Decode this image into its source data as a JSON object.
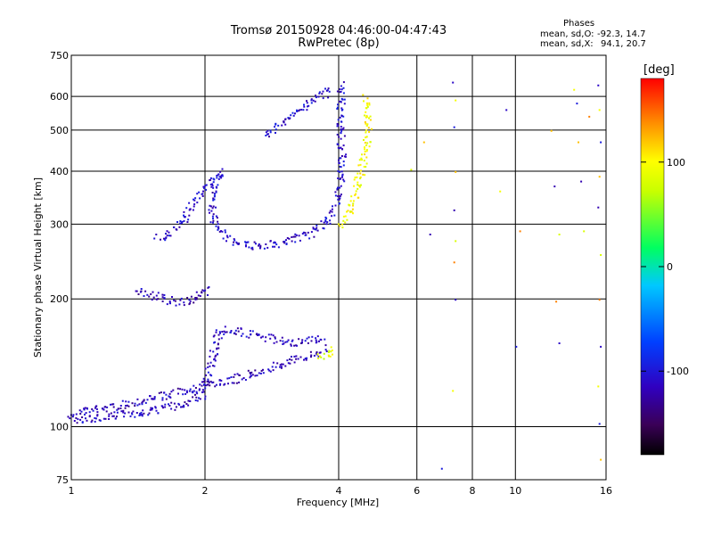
{
  "header": {
    "title_line1": "Tromsø 20150928 04:46:00-04:47:43",
    "title_line2": "RwPretec (8p)"
  },
  "stats": {
    "heading": "Phases",
    "o_label": "mean, sd,O:",
    "o_values": "-92.3, 14.7",
    "x_label": "mean, sd,X:",
    "x_values": "94.1, 20.7"
  },
  "colorbar": {
    "unit": "[deg]",
    "tick_labels": [
      "100",
      "0",
      "-100"
    ],
    "tick_values": [
      100,
      0,
      -100
    ],
    "range": [
      -180,
      180
    ],
    "colormap": "rainbow (black-purple-blue-cyan-green-yellow-orange-red)"
  },
  "chart_data": {
    "type": "scatter",
    "title": "Tromsø 20150928 04:46:00-04:47:43",
    "subtitle": "RwPretec (8p)",
    "xlabel": "Frequency [MHz]",
    "ylabel": "Stationary phase Virtual Height [km]",
    "xscale": "log",
    "yscale": "log",
    "xlim": [
      1,
      16
    ],
    "ylim": [
      75,
      750
    ],
    "xticks": [
      1,
      2,
      4,
      6,
      8,
      10,
      16
    ],
    "yticks": [
      75,
      100,
      200,
      300,
      400,
      500,
      600,
      750
    ],
    "grid": true,
    "color_by": "phase [deg]",
    "traces": [
      {
        "name": "",
        "points": [
          [
            1.0,
            108
          ],
          [
            1.1,
            110
          ],
          [
            1.25,
            112
          ],
          [
            1.4,
            115
          ],
          [
            1.55,
            118
          ],
          [
            1.7,
            120
          ],
          [
            1.9,
            124
          ],
          [
            2.2,
            128
          ],
          [
            2.5,
            133
          ],
          [
            2.8,
            138
          ],
          [
            3.1,
            143
          ],
          [
            3.4,
            148
          ],
          [
            3.7,
            152
          ]
        ],
        "phase_deg": -115
      },
      {
        "name": "",
        "points": [
          [
            1.0,
            104
          ],
          [
            1.2,
            106
          ],
          [
            1.5,
            109
          ],
          [
            1.75,
            113
          ],
          [
            1.95,
            118
          ],
          [
            2.05,
            140
          ],
          [
            2.15,
            170
          ],
          [
            2.4,
            168
          ],
          [
            2.8,
            162
          ],
          [
            3.2,
            158
          ],
          [
            3.5,
            162
          ],
          [
            3.7,
            158
          ]
        ],
        "phase_deg": -112
      },
      {
        "name": "",
        "points": [
          [
            1.4,
            210
          ],
          [
            1.55,
            203
          ],
          [
            1.7,
            198
          ],
          [
            1.85,
            198
          ],
          [
            1.95,
            205
          ],
          [
            2.05,
            212
          ]
        ],
        "phase_deg": -118
      },
      {
        "name": "",
        "points": [
          [
            1.55,
            280
          ],
          [
            1.65,
            285
          ],
          [
            1.75,
            300
          ],
          [
            1.85,
            330
          ],
          [
            1.95,
            360
          ],
          [
            2.05,
            380
          ],
          [
            2.15,
            400
          ],
          [
            2.05,
            340
          ],
          [
            2.1,
            300
          ],
          [
            2.3,
            275
          ],
          [
            2.6,
            268
          ],
          [
            3.0,
            272
          ],
          [
            3.4,
            285
          ],
          [
            3.7,
            300
          ],
          [
            3.9,
            330
          ],
          [
            4.05,
            380
          ],
          [
            4.05,
            450
          ],
          [
            4.0,
            520
          ],
          [
            4.05,
            600
          ],
          [
            4.0,
            650
          ]
        ],
        "phase_deg": -108
      },
      {
        "name": "",
        "points": [
          [
            2.7,
            490
          ],
          [
            3.0,
            525
          ],
          [
            3.3,
            565
          ],
          [
            3.6,
            600
          ],
          [
            3.85,
            630
          ]
        ],
        "phase_deg": -105
      },
      {
        "name": "",
        "points": [
          [
            4.0,
            300
          ],
          [
            4.2,
            320
          ],
          [
            4.35,
            360
          ],
          [
            4.5,
            410
          ],
          [
            4.6,
            460
          ],
          [
            4.65,
            520
          ],
          [
            4.6,
            580
          ],
          [
            4.55,
            600
          ]
        ],
        "phase_deg": 95
      },
      {
        "name": "",
        "points": [
          [
            3.6,
            145
          ],
          [
            3.8,
            150
          ],
          [
            3.9,
            155
          ]
        ],
        "phase_deg": 85
      }
    ],
    "sparse_points": [
      [
        7.2,
        650
      ],
      [
        7.3,
        590
      ],
      [
        7.25,
        510
      ],
      [
        7.3,
        400
      ],
      [
        7.25,
        325
      ],
      [
        7.3,
        275
      ],
      [
        7.25,
        245
      ],
      [
        7.3,
        200
      ],
      [
        7.2,
        122
      ],
      [
        6.8,
        80
      ],
      [
        6.2,
        470
      ],
      [
        6.4,
        285
      ],
      [
        5.8,
        405
      ],
      [
        10.2,
        290
      ],
      [
        9.5,
        560
      ],
      [
        9.2,
        360
      ],
      [
        10.0,
        155
      ],
      [
        12.0,
        500
      ],
      [
        12.2,
        370
      ],
      [
        12.5,
        285
      ],
      [
        12.3,
        198
      ],
      [
        12.5,
        158
      ],
      [
        13.5,
        625
      ],
      [
        13.7,
        580
      ],
      [
        13.8,
        470
      ],
      [
        14.0,
        380
      ],
      [
        14.2,
        290
      ],
      [
        14.6,
        540
      ],
      [
        15.3,
        640
      ],
      [
        15.4,
        560
      ],
      [
        15.5,
        470
      ],
      [
        15.4,
        390
      ],
      [
        15.3,
        330
      ],
      [
        15.5,
        255
      ],
      [
        15.4,
        200
      ],
      [
        15.5,
        155
      ],
      [
        15.3,
        125
      ],
      [
        15.4,
        102
      ],
      [
        15.5,
        84
      ]
    ]
  }
}
